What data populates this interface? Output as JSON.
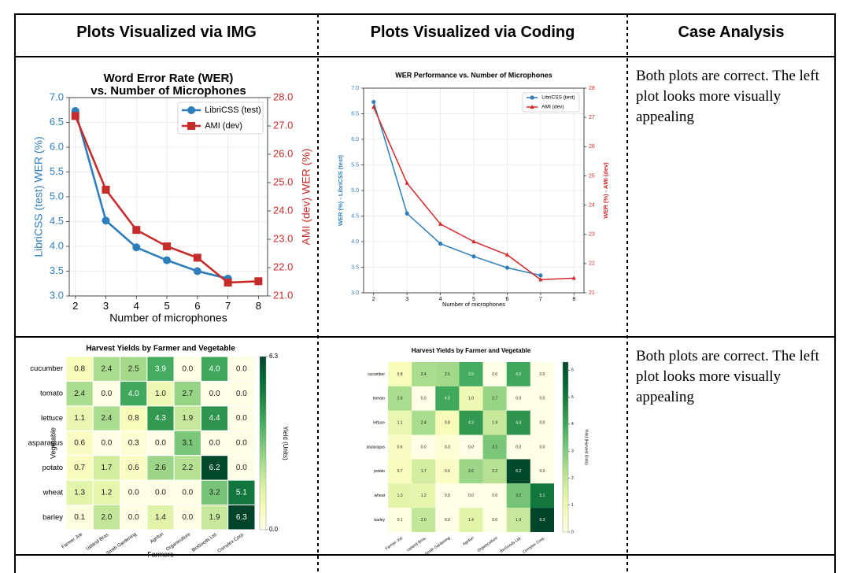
{
  "table": {
    "columns": [
      "Plots Visualized via IMG",
      "Plots Visualized via Coding",
      "Case Analysis"
    ],
    "analysis": [
      "Both plots are correct. The left plot looks more visually appealing",
      "Both plots are correct. The left plot looks more visually appealing"
    ]
  },
  "chart_data": [
    {
      "type": "line",
      "title": [
        "Word Error Rate (WER)",
        "vs. Number of Microphones"
      ],
      "xlabel": "Number of microphones",
      "ylabel": "LibriCSS (test) WER (%)",
      "y2label": "AMI (dev) WER (%)",
      "x": [
        2,
        3,
        4,
        5,
        6,
        7,
        8
      ],
      "series": [
        {
          "name": "LibriCSS (test)",
          "color": "#2e7ebc",
          "marker": "o",
          "values": [
            6.73,
            4.52,
            3.98,
            3.72,
            3.5,
            3.35,
            null
          ]
        },
        {
          "name": "AMI (dev)",
          "color": "#c62d2a",
          "marker": "s",
          "axis": "y2",
          "values": [
            27.35,
            24.75,
            23.33,
            22.75,
            22.35,
            21.47,
            21.52
          ]
        }
      ],
      "xlim": [
        1.8,
        8.3
      ],
      "xticks": [
        2,
        3,
        4,
        5,
        6,
        7,
        8
      ],
      "ylim": [
        3,
        7
      ],
      "yticks": [
        {
          "value": 3,
          "label": "3.0"
        },
        {
          "value": 3.5,
          "label": "3.5"
        },
        {
          "value": 4,
          "label": "4.0"
        },
        {
          "value": 4.5,
          "label": "4.5"
        },
        {
          "value": 5,
          "label": "5.0"
        },
        {
          "value": 5.5,
          "label": "5.5"
        },
        {
          "value": 6,
          "label": "6.0"
        },
        {
          "value": 6.5,
          "label": "6.5"
        },
        {
          "value": 7,
          "label": "7.0"
        }
      ],
      "y2lim": [
        21,
        28
      ],
      "y2ticks": [
        {
          "value": 21,
          "label": "21.0"
        },
        {
          "value": 22,
          "label": "22.0"
        },
        {
          "value": 23,
          "label": "23.0"
        },
        {
          "value": 24,
          "label": "24.0"
        },
        {
          "value": 25,
          "label": "25.0"
        },
        {
          "value": 26,
          "label": "26.0"
        },
        {
          "value": 27,
          "label": "27.0"
        },
        {
          "value": 28,
          "label": "28.0"
        }
      ],
      "grid": true,
      "legend": "upper right"
    },
    {
      "type": "line",
      "title": "WER Performance vs. Number of Microphones",
      "xlabel": "Number of microphones",
      "ylabel": "WER (%) - LibriCSS (test)",
      "y2label": "WER (%) - AMI (dev)",
      "x": [
        2,
        3,
        4,
        5,
        6,
        7,
        8
      ],
      "series": [
        {
          "name": "LibriCSS (test)",
          "color": "#2e7ebc",
          "marker": "o",
          "values": [
            6.73,
            4.55,
            3.96,
            3.71,
            3.49,
            3.34,
            null
          ]
        },
        {
          "name": "AMI (dev)",
          "color": "#d62728",
          "marker": "^",
          "axis": "y2",
          "values": [
            27.35,
            24.75,
            23.35,
            22.75,
            22.3,
            21.45,
            21.5
          ]
        }
      ],
      "xlim": [
        1.7,
        8.3
      ],
      "xticks": [
        2,
        3,
        4,
        5,
        6,
        7,
        8
      ],
      "ylim": [
        3,
        7
      ],
      "yticks": [
        {
          "value": 3,
          "label": "3.0"
        },
        {
          "value": 3.5,
          "label": "3.5"
        },
        {
          "value": 4,
          "label": "4.0"
        },
        {
          "value": 4.5,
          "label": "4.5"
        },
        {
          "value": 5,
          "label": "5.0"
        },
        {
          "value": 5.5,
          "label": "5.5"
        },
        {
          "value": 6,
          "label": "6.0"
        },
        {
          "value": 6.5,
          "label": "6.5"
        },
        {
          "value": 7,
          "label": "7.0"
        }
      ],
      "y2lim": [
        21,
        28
      ],
      "y2ticks": [
        21,
        22,
        23,
        24,
        25,
        26,
        27,
        28
      ],
      "grid": true,
      "legend": "upper right"
    },
    {
      "type": "heatmap",
      "title": "Harvest Yields by Farmer and Vegetable",
      "xlabel": "Farmers",
      "ylabel": "Vegetable",
      "colorbar_label": "Yield (Units)",
      "cmap": "YlGn",
      "x": [
        "Farmer Joe",
        "Upland Bros.",
        "Smith Gardening",
        "Agrifun",
        "Organiculture",
        "BioGoods Ltd.",
        "Cornylex Corp."
      ],
      "y": [
        "cucumber",
        "tomato",
        "lettuce",
        "asparagus",
        "potato",
        "wheat",
        "barley"
      ],
      "values": [
        [
          0.8,
          2.4,
          2.5,
          3.9,
          0,
          4,
          0
        ],
        [
          2.4,
          0,
          4,
          1,
          2.7,
          0,
          0
        ],
        [
          1.1,
          2.4,
          0.8,
          4.3,
          1.9,
          4.4,
          0
        ],
        [
          0.6,
          0,
          0.3,
          0,
          3.1,
          0,
          0
        ],
        [
          0.7,
          1.7,
          0.6,
          2.6,
          2.2,
          6.2,
          0
        ],
        [
          1.3,
          1.2,
          0,
          0,
          0,
          3.2,
          5.1
        ],
        [
          0.1,
          2,
          0,
          1.4,
          0,
          1.9,
          6.3
        ]
      ],
      "value_labels": [
        [
          "0.8",
          "2.4",
          "2.5",
          "3.9",
          "0.0",
          "4.0",
          "0.0"
        ],
        [
          "2.4",
          "0.0",
          "4.0",
          "1.0",
          "2.7",
          "0.0",
          "0.0"
        ],
        [
          "1.1",
          "2.4",
          "0.8",
          "4.3",
          "1.9",
          "4.4",
          "0.0"
        ],
        [
          "0.6",
          "0.0",
          "0.3",
          "0.0",
          "3.1",
          "0.0",
          "0.0"
        ],
        [
          "0.7",
          "1.7",
          "0.6",
          "2.6",
          "2.2",
          "6.2",
          "0.0"
        ],
        [
          "1.3",
          "1.2",
          "0.0",
          "0.0",
          "0.0",
          "3.2",
          "5.1"
        ],
        [
          "0.1",
          "2.0",
          "0.0",
          "1.4",
          "0.0",
          "1.9",
          "6.3"
        ]
      ],
      "clim": [
        0,
        6.3
      ],
      "cticks": [
        {
          "value": 0,
          "label": "0.0"
        },
        {
          "value": 6.3,
          "label": "6.3"
        }
      ]
    },
    {
      "type": "heatmap",
      "title": "Harvest Yields by Farmer and Vegetable",
      "colorbar_label": "Yield (Harvest Units)",
      "cmap": "YlGn",
      "x": [
        "Farmer Joe",
        "Upland Bros.",
        "Smith Gardening",
        "Agrifun",
        "Organiculture",
        "BioGoods Ltd.",
        "Cornylex Corp."
      ],
      "y": [
        "cucumber",
        "tomato",
        "lettuce",
        "asparagus",
        "potato",
        "wheat",
        "barley"
      ],
      "values": [
        [
          0.8,
          2.4,
          2.5,
          3.9,
          0,
          4,
          0
        ],
        [
          2.4,
          0,
          4,
          1,
          2.7,
          0,
          0
        ],
        [
          1.1,
          2.4,
          0.8,
          4.3,
          1.9,
          4.4,
          0
        ],
        [
          0.6,
          0,
          0.3,
          0,
          3.1,
          0,
          0
        ],
        [
          0.7,
          1.7,
          0.6,
          2.6,
          2.2,
          6.2,
          0
        ],
        [
          1.3,
          1.2,
          0,
          0,
          0,
          3.2,
          5.1
        ],
        [
          0.1,
          2,
          0,
          1.4,
          0,
          1.9,
          6.3
        ]
      ],
      "value_labels": [
        [
          "0.8",
          "2.4",
          "2.5",
          "3.9",
          "0.0",
          "4.0",
          "0.0"
        ],
        [
          "2.4",
          "0.0",
          "4.0",
          "1.0",
          "2.7",
          "0.0",
          "0.0"
        ],
        [
          "1.1",
          "2.4",
          "0.8",
          "4.3",
          "1.9",
          "4.4",
          "0.0"
        ],
        [
          "0.6",
          "0.0",
          "0.3",
          "0.0",
          "3.1",
          "0.0",
          "0.0"
        ],
        [
          "0.7",
          "1.7",
          "0.6",
          "2.6",
          "2.2",
          "6.2",
          "0.0"
        ],
        [
          "1.3",
          "1.2",
          "0.0",
          "0.0",
          "0.0",
          "3.2",
          "5.1"
        ],
        [
          "0.1",
          "2.0",
          "0.0",
          "1.4",
          "0.0",
          "1.9",
          "6.3"
        ]
      ],
      "clim": [
        0,
        6.3
      ],
      "cticks": [
        0,
        1,
        2,
        3,
        4,
        5,
        6
      ]
    }
  ]
}
